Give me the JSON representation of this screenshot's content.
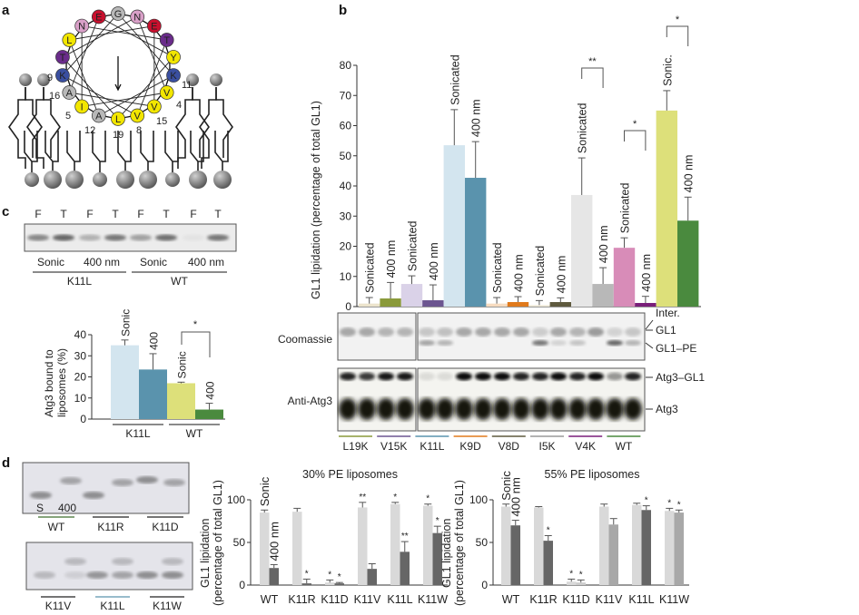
{
  "panel_labels": {
    "a": "a",
    "b": "b",
    "c": "c",
    "d": "d"
  },
  "panel_a": {
    "residues": [
      {
        "aa": "G",
        "color": "#b8b8b8"
      },
      {
        "aa": "N",
        "color": "#d9a0c8"
      },
      {
        "aa": "E",
        "color": "#c8102e"
      },
      {
        "aa": "T",
        "color": "#6a2c8a"
      },
      {
        "aa": "Y",
        "color": "#f2e600"
      },
      {
        "aa": "K",
        "color": "#3a4fa0"
      },
      {
        "aa": "V",
        "color": "#f2e600"
      },
      {
        "aa": "V",
        "color": "#f2e600"
      },
      {
        "aa": "V",
        "color": "#f2e600"
      },
      {
        "aa": "L",
        "color": "#f2e600"
      },
      {
        "aa": "A",
        "color": "#b8b8b8"
      },
      {
        "aa": "I",
        "color": "#f2e600"
      },
      {
        "aa": "A",
        "color": "#b8b8b8"
      },
      {
        "aa": "K",
        "color": "#3a4fa0"
      },
      {
        "aa": "T",
        "color": "#6a2c8a"
      },
      {
        "aa": "L",
        "color": "#f2e600"
      },
      {
        "aa": "N",
        "color": "#d9a0c8"
      },
      {
        "aa": "E",
        "color": "#c8102e"
      }
    ],
    "position_numbers": [
      "9",
      "16",
      "5",
      "12",
      "19",
      "8",
      "15",
      "4",
      "11"
    ]
  },
  "chart_data": [
    {
      "panel": "b",
      "type": "bar",
      "ylabel": "GL1 lipidation (percentage of total GL1)",
      "ylim": [
        0,
        80
      ],
      "yticks": [
        "0",
        "10",
        "20",
        "30",
        "40",
        "50",
        "60",
        "70",
        "80"
      ],
      "groups": [
        {
          "name": "L19K",
          "color": "#8a9a3a",
          "light": "#ece4cc",
          "bars": [
            {
              "label": "Sonicated",
              "value": 1,
              "err": 2
            },
            {
              "label": "400 nm",
              "value": 2.7,
              "err": 5.3
            }
          ]
        },
        {
          "name": "V15K",
          "color": "#6c5590",
          "light": "#dad2e8",
          "bars": [
            {
              "label": "Sonicated",
              "value": 7.5,
              "err": 2.7
            },
            {
              "label": "400 nm",
              "value": 2.1,
              "err": 5.1
            }
          ]
        },
        {
          "name": "K11L",
          "color": "#5a93ad",
          "light": "#d3e5ef",
          "bars": [
            {
              "label": "Sonicated",
              "value": 53.5,
              "err": 11.8
            },
            {
              "label": "400 nm",
              "value": 42.7,
              "err": 12
            }
          ]
        },
        {
          "name": "K9D",
          "color": "#e07a1c",
          "light": "#f7dcc0",
          "bars": [
            {
              "label": "Sonicated",
              "value": 1,
              "err": 2
            },
            {
              "label": "400 nm",
              "value": 1.5,
              "err": 1.8
            }
          ]
        },
        {
          "name": "V8D",
          "color": "#5f5a3e",
          "light": "#f0ead8",
          "bars": [
            {
              "label": "Sonicated",
              "value": 0.5,
              "err": 1.5
            },
            {
              "label": "400 nm",
              "value": 1.5,
              "err": 1.4
            }
          ]
        },
        {
          "name": "I5K",
          "color": "#9a9a9a",
          "light": "#e6e6e6",
          "barcolor": "#b8b8b8",
          "bars": [
            {
              "label": "Sonicated",
              "value": 37,
              "err": 12.3
            },
            {
              "label": "400 nm",
              "value": 7.5,
              "err": 5.4
            }
          ]
        },
        {
          "name": "V4K",
          "color": "#7a1f7a",
          "light": "#d88cb8",
          "bars": [
            {
              "label": "Sonicated",
              "value": 19.5,
              "err": 3.3
            },
            {
              "label": "400 nm",
              "value": 1.2,
              "err": 2.2
            }
          ]
        },
        {
          "name": "WT",
          "color": "#4a8a3e",
          "light": "#dde07a",
          "bars": [
            {
              "label": "Sonic.",
              "value": 65,
              "err": 6.6
            },
            {
              "label": "400 nm",
              "value": 28.5,
              "err": 7.8
            }
          ]
        }
      ],
      "significance": [
        {
          "group": "I5K",
          "mark": "**"
        },
        {
          "group": "V4K",
          "mark": "*"
        },
        {
          "group": "WT",
          "mark": "*"
        }
      ],
      "blots": {
        "coomassie_label": "Coomassie",
        "anti_label": "Anti-Atg3",
        "band_labels": [
          "Inter.",
          "GL1",
          "GL1–PE",
          "Atg3–GL1",
          "Atg3"
        ]
      }
    },
    {
      "panel": "c",
      "type": "bar",
      "ylabel": "Atg3 bound to liposomes (%)",
      "ylim": [
        0,
        40
      ],
      "yticks": [
        "0",
        "10",
        "20",
        "30",
        "40"
      ],
      "groups": [
        {
          "name": "K11L",
          "color": "#5a93ad",
          "light": "#d3e5ef",
          "bars": [
            {
              "label": "Sonic",
              "value": 35,
              "err": 2.5
            },
            {
              "label": "400",
              "value": 23.5,
              "err": 7.5
            }
          ]
        },
        {
          "name": "WT",
          "color": "#4a8a3e",
          "light": "#dde07a",
          "bars": [
            {
              "label": "Sonic",
              "value": 17,
              "err": 0.5
            },
            {
              "label": "400",
              "value": 4.5,
              "err": 3
            }
          ]
        }
      ],
      "significance": [
        {
          "group": "WT",
          "mark": "*"
        }
      ],
      "gel": {
        "lanes": [
          "F",
          "T",
          "F",
          "T",
          "F",
          "T",
          "F",
          "T"
        ],
        "conditions": [
          "Sonic",
          "400 nm",
          "Sonic",
          "400 nm"
        ],
        "groups": [
          "K11L",
          "WT"
        ]
      }
    },
    {
      "panel": "d-left",
      "type": "bar",
      "title": "30% PE liposomes",
      "ylabel": "GL1 lipidation (percentage of total GL1)",
      "ylim": [
        0,
        100
      ],
      "yticks": [
        "0",
        "50",
        "100"
      ],
      "bar_labels": [
        "Sonic",
        "400 nm"
      ],
      "categories": [
        "WT",
        "K11R",
        "K11D",
        "K11V",
        "K11L",
        "K11W"
      ],
      "category_colors": [
        "#3e6e2e",
        "#222222",
        "#222222",
        "#222222",
        "#5a93ad",
        "#222222"
      ],
      "series": [
        {
          "values": [
            85,
            86,
            3,
            91,
            95,
            93
          ],
          "errors": [
            3,
            4,
            3,
            6,
            2,
            2
          ],
          "stars": [
            "",
            "",
            "*",
            "**",
            "*",
            "*"
          ],
          "color": "#d9d9d9"
        },
        {
          "values": [
            20,
            2,
            2,
            19,
            39,
            61
          ],
          "errors": [
            4,
            5,
            1,
            6,
            12,
            8
          ],
          "stars": [
            "",
            "*",
            "*",
            "",
            "**",
            "*"
          ],
          "color": "#666666"
        }
      ]
    },
    {
      "panel": "d-right",
      "type": "bar",
      "title": "55% PE liposomes",
      "ylabel": "GL1 lipidation (percentage of total GL1)",
      "ylim": [
        0,
        100
      ],
      "yticks": [
        "0",
        "50",
        "100"
      ],
      "bar_labels": [
        "Sonic",
        "400 nm"
      ],
      "categories": [
        "WT",
        "K11R",
        "K11D",
        "K11V",
        "K11L",
        "K11W"
      ],
      "category_colors": [
        "#3e6e2e",
        "#222222",
        "#222222",
        "#222222",
        "#5a93ad",
        "#222222"
      ],
      "series": [
        {
          "values": [
            92,
            91,
            4,
            92,
            94,
            87
          ],
          "errors": [
            3,
            1,
            3,
            3,
            2,
            3
          ],
          "stars": [
            "",
            "",
            "*",
            "",
            "",
            "*"
          ],
          "color": "#d9d9d9"
        },
        {
          "values": [
            70,
            52,
            3,
            71,
            88,
            85
          ],
          "errors": [
            6,
            6,
            3,
            7,
            5,
            3
          ],
          "stars": [
            "",
            "*",
            "*",
            "",
            "*",
            "*"
          ],
          "colors": [
            "#666666",
            "#666666",
            "#cccccc",
            "#a8a8a8",
            "#666666",
            "#a8a8a8"
          ]
        }
      ]
    }
  ],
  "panel_d_gels": {
    "lane_labels": [
      "S",
      "400"
    ],
    "top_groups": [
      "WT",
      "K11R",
      "K11D"
    ],
    "bottom_groups": [
      "K11V",
      "K11L",
      "K11W"
    ]
  }
}
